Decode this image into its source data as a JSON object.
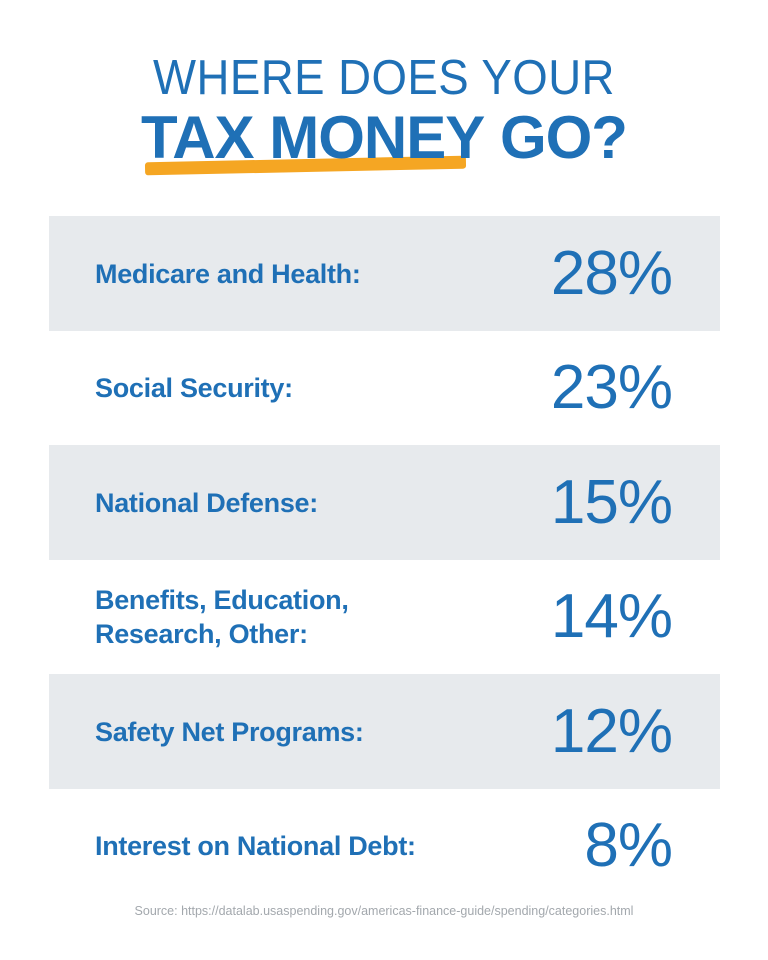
{
  "title": {
    "line1": "WHERE DOES YOUR",
    "line2_highlight": "TAX MONEY",
    "line2_rest": " GO?"
  },
  "rows": [
    {
      "label": "Medicare and Health:",
      "value": "28%",
      "percent": 28
    },
    {
      "label": "Social Security:",
      "value": "23%",
      "percent": 23
    },
    {
      "label": "National Defense:",
      "value": "15%",
      "percent": 15
    },
    {
      "label": "Benefits, Education,\nResearch, Other:",
      "value": "14%",
      "percent": 14
    },
    {
      "label": "Safety Net Programs:",
      "value": "12%",
      "percent": 12
    },
    {
      "label": "Interest on National Debt:",
      "value": "8%",
      "percent": 8
    }
  ],
  "source": "Source: https://datalab.usaspending.gov/americas-finance-guide/spending/categories.html",
  "colors": {
    "primary_blue": "#1f70b6",
    "underline_yellow": "#f5a623",
    "row_shade": "#e7eaed",
    "source_gray": "#a3a8ad",
    "background": "#ffffff"
  }
}
